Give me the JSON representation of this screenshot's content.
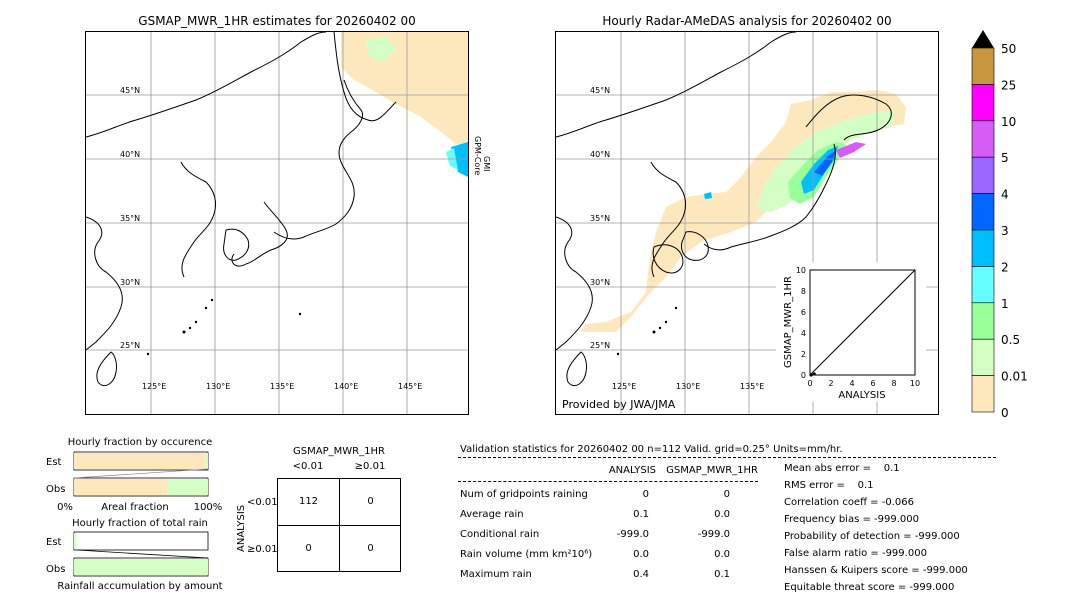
{
  "map_left": {
    "title": "GSMAP_MWR_1HR estimates for 20260402 00",
    "side_label_1": "GPM-Core",
    "side_label_2": "GMI",
    "lat_labels": [
      "45°N",
      "40°N",
      "35°N",
      "30°N",
      "25°N"
    ],
    "lon_labels": [
      "125°E",
      "130°E",
      "135°E",
      "140°E",
      "145°E"
    ]
  },
  "map_right": {
    "title": "Hourly Radar-AMeDAS analysis for 20260402 00",
    "credit": "Provided by JWA/JMA",
    "lat_labels": [
      "45°N",
      "40°N",
      "35°N",
      "30°N",
      "25°N"
    ],
    "lon_labels": [
      "125°E",
      "130°E",
      "135°E"
    ]
  },
  "colorbar": {
    "labels": [
      "50",
      "25",
      "10",
      "5",
      "4",
      "3",
      "2",
      "1",
      "0.5",
      "0.01",
      "0"
    ],
    "colors": [
      "#c8963c",
      "#ff00ff",
      "#d65cf5",
      "#9966ff",
      "#0066ff",
      "#00bfff",
      "#66ffff",
      "#99ff99",
      "#d4ffc4",
      "#fde8bd"
    ]
  },
  "chart_data": [
    {
      "type": "scatter",
      "title": "",
      "xlabel": "ANALYSIS",
      "ylabel": "GSMAP_MWR_1HR",
      "xlim": [
        0,
        10
      ],
      "ylim": [
        0,
        10
      ],
      "x_ticks": [
        "0",
        "2",
        "4",
        "6",
        "8",
        "10"
      ],
      "y_ticks": [
        "0",
        "2",
        "4",
        "6",
        "8",
        "10"
      ],
      "points": [
        {
          "x": 0.1,
          "y": 0.0
        },
        {
          "x": 0.4,
          "y": 0.1
        }
      ],
      "reference_line": "y = x"
    },
    {
      "type": "bar",
      "title": "Hourly fraction by occurence",
      "categories": [
        "Est",
        "Obs"
      ],
      "values": [
        0.98,
        0.7
      ],
      "xlabel": "Areal fraction",
      "x_ticks": [
        "0%",
        "100%"
      ]
    },
    {
      "type": "bar",
      "title": "Hourly fraction of total rain",
      "categories": [
        "Est",
        "Obs"
      ],
      "values": [
        0.02,
        1.0
      ],
      "xlabel": "Rainfall accumulation by amount"
    },
    {
      "type": "table",
      "title": "GSMAP_MWR_1HR",
      "col_labels": [
        "<0.01",
        "≥0.01"
      ],
      "row_title": "ANALYSIS",
      "row_labels": [
        "<0.01",
        "≥0.01"
      ],
      "cells": [
        [
          "112",
          "0"
        ],
        [
          "0",
          "0"
        ]
      ]
    }
  ],
  "stats": {
    "header": "Validation statistics for 20260402 00  n=112 Valid. grid=0.25° Units=mm/hr.",
    "col_analysis": "ANALYSIS",
    "col_gsmap": "GSMAP_MWR_1HR",
    "rows": [
      {
        "label": "Num of gridpoints raining",
        "a": "0",
        "g": "0"
      },
      {
        "label": "Average rain",
        "a": "0.1",
        "g": "0.0"
      },
      {
        "label": "Conditional rain",
        "a": "-999.0",
        "g": "-999.0"
      },
      {
        "label": "Rain volume (mm km²10⁶)",
        "a": "0.0",
        "g": "0.0"
      },
      {
        "label": "Maximum rain",
        "a": "0.4",
        "g": "0.1"
      }
    ],
    "scores": [
      "Mean abs error =    0.1",
      "RMS error =    0.1",
      "Correlation coeff = -0.066",
      "Frequency bias = -999.000",
      "Probability of detection = -999.000",
      "False alarm ratio = -999.000",
      "Hanssen & Kuipers score = -999.000",
      "Equitable threat score = -999.000"
    ]
  }
}
